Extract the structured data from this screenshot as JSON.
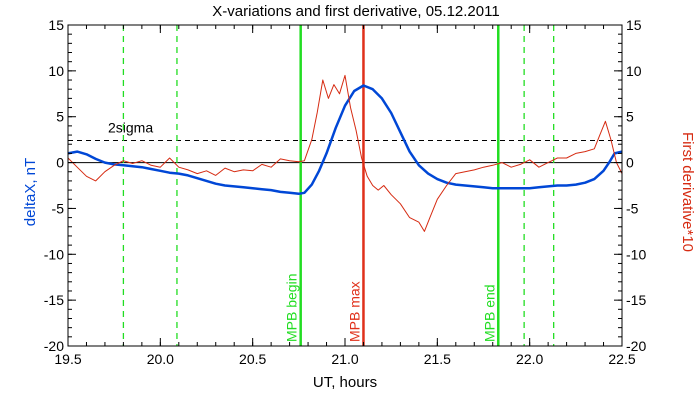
{
  "chart_data": {
    "type": "line",
    "title": "X-variations and first derivative, 05.12.2011",
    "xlabel": "UT, hours",
    "ylabel_left": "deltaX, nT",
    "ylabel_right": "First derivative*10",
    "xlim": [
      19.5,
      22.5
    ],
    "ylim": [
      -20,
      15
    ],
    "x_ticks": [
      "19.5",
      "20.0",
      "20.5",
      "21.0",
      "21.5",
      "22.0",
      "22.5"
    ],
    "y_ticks": [
      "15",
      "10",
      "5",
      "0",
      "-5",
      "-10",
      "-15",
      "-20"
    ],
    "y_ticks_right": [
      "15",
      "10",
      "5",
      "0",
      "-5",
      "-10",
      "-15",
      "-20"
    ],
    "colors": {
      "deltaX": "#0047d6",
      "derivative": "#d62b12",
      "mpb_lines": "#22dd22",
      "mpb_max_line": "#e0301a",
      "axis": "#000000"
    },
    "threshold": {
      "label": "2sigma",
      "value": 2.4,
      "style": "dashed"
    },
    "zero_line": 0,
    "vlines": [
      {
        "x": 20.76,
        "label": "MPB begin",
        "style": "solid",
        "color": "#22dd22"
      },
      {
        "x": 21.1,
        "label": "MPB max",
        "style": "solid",
        "color": "#e0301a"
      },
      {
        "x": 21.83,
        "label": "MPB end",
        "style": "solid",
        "color": "#22dd22"
      },
      {
        "x": 19.8,
        "label": "",
        "style": "dashed",
        "color": "#22dd22"
      },
      {
        "x": 20.09,
        "label": "",
        "style": "dashed",
        "color": "#22dd22"
      },
      {
        "x": 21.97,
        "label": "",
        "style": "dashed",
        "color": "#22dd22"
      },
      {
        "x": 22.13,
        "label": "",
        "style": "dashed",
        "color": "#22dd22"
      }
    ],
    "series": [
      {
        "values_axis": "left",
        "x": [
          19.5,
          19.55,
          19.6,
          19.65,
          19.7,
          19.75,
          19.8,
          19.85,
          19.9,
          19.95,
          20.0,
          20.05,
          20.1,
          20.15,
          20.2,
          20.25,
          20.3,
          20.35,
          20.4,
          20.45,
          20.5,
          20.55,
          20.6,
          20.65,
          20.7,
          20.75,
          20.78,
          20.82,
          20.86,
          20.9,
          20.95,
          21.0,
          21.05,
          21.1,
          21.15,
          21.2,
          21.25,
          21.3,
          21.35,
          21.4,
          21.45,
          21.5,
          21.55,
          21.6,
          21.65,
          21.7,
          21.75,
          21.8,
          21.85,
          21.9,
          21.95,
          22.0,
          22.05,
          22.1,
          22.15,
          22.2,
          22.25,
          22.3,
          22.35,
          22.4,
          22.43,
          22.46,
          22.5
        ],
        "y": [
          1.0,
          1.2,
          0.9,
          0.4,
          0.0,
          -0.2,
          -0.3,
          -0.4,
          -0.5,
          -0.7,
          -0.9,
          -1.1,
          -1.2,
          -1.4,
          -1.7,
          -2.0,
          -2.3,
          -2.5,
          -2.6,
          -2.7,
          -2.8,
          -2.9,
          -3.0,
          -3.2,
          -3.3,
          -3.4,
          -3.3,
          -2.4,
          -0.9,
          1.0,
          3.8,
          6.2,
          7.8,
          8.4,
          8.0,
          7.0,
          5.4,
          3.3,
          1.2,
          -0.3,
          -1.2,
          -1.8,
          -2.2,
          -2.4,
          -2.5,
          -2.6,
          -2.7,
          -2.8,
          -2.8,
          -2.8,
          -2.8,
          -2.8,
          -2.7,
          -2.6,
          -2.5,
          -2.5,
          -2.4,
          -2.2,
          -1.8,
          -0.9,
          0.0,
          1.0,
          1.2
        ]
      },
      {
        "values_axis": "right",
        "x": [
          19.5,
          19.55,
          19.6,
          19.65,
          19.7,
          19.75,
          19.8,
          19.85,
          19.9,
          19.95,
          20.0,
          20.05,
          20.1,
          20.15,
          20.2,
          20.25,
          20.3,
          20.35,
          20.4,
          20.45,
          20.5,
          20.55,
          20.6,
          20.65,
          20.7,
          20.75,
          20.78,
          20.82,
          20.85,
          20.88,
          20.91,
          20.94,
          20.97,
          21.0,
          21.03,
          21.06,
          21.09,
          21.12,
          21.15,
          21.18,
          21.21,
          21.25,
          21.3,
          21.35,
          21.4,
          21.43,
          21.46,
          21.5,
          21.55,
          21.6,
          21.65,
          21.7,
          21.75,
          21.8,
          21.85,
          21.9,
          21.95,
          22.0,
          22.05,
          22.1,
          22.15,
          22.2,
          22.25,
          22.3,
          22.35,
          22.38,
          22.41,
          22.44,
          22.47,
          22.5
        ],
        "y": [
          0.5,
          -0.5,
          -1.5,
          -2.0,
          -1.0,
          -0.3,
          0.2,
          -0.1,
          0.2,
          -0.3,
          -0.5,
          0.5,
          -0.5,
          -0.8,
          -1.2,
          -0.9,
          -1.4,
          -0.6,
          -1.0,
          -0.8,
          -0.9,
          -0.2,
          -0.5,
          0.4,
          0.2,
          0.1,
          0.2,
          2.5,
          5.5,
          9.0,
          7.0,
          8.5,
          7.5,
          9.5,
          6.0,
          3.5,
          0.5,
          -1.5,
          -2.5,
          -3.0,
          -2.5,
          -3.5,
          -4.5,
          -6.0,
          -6.5,
          -7.5,
          -6.0,
          -4.0,
          -2.5,
          -1.2,
          -1.0,
          -0.8,
          -0.5,
          -0.3,
          0.0,
          -0.5,
          -0.2,
          0.3,
          -0.5,
          0.0,
          0.5,
          0.5,
          1.0,
          1.2,
          1.5,
          3.0,
          4.5,
          2.5,
          0.0,
          -1.2
        ]
      }
    ]
  }
}
